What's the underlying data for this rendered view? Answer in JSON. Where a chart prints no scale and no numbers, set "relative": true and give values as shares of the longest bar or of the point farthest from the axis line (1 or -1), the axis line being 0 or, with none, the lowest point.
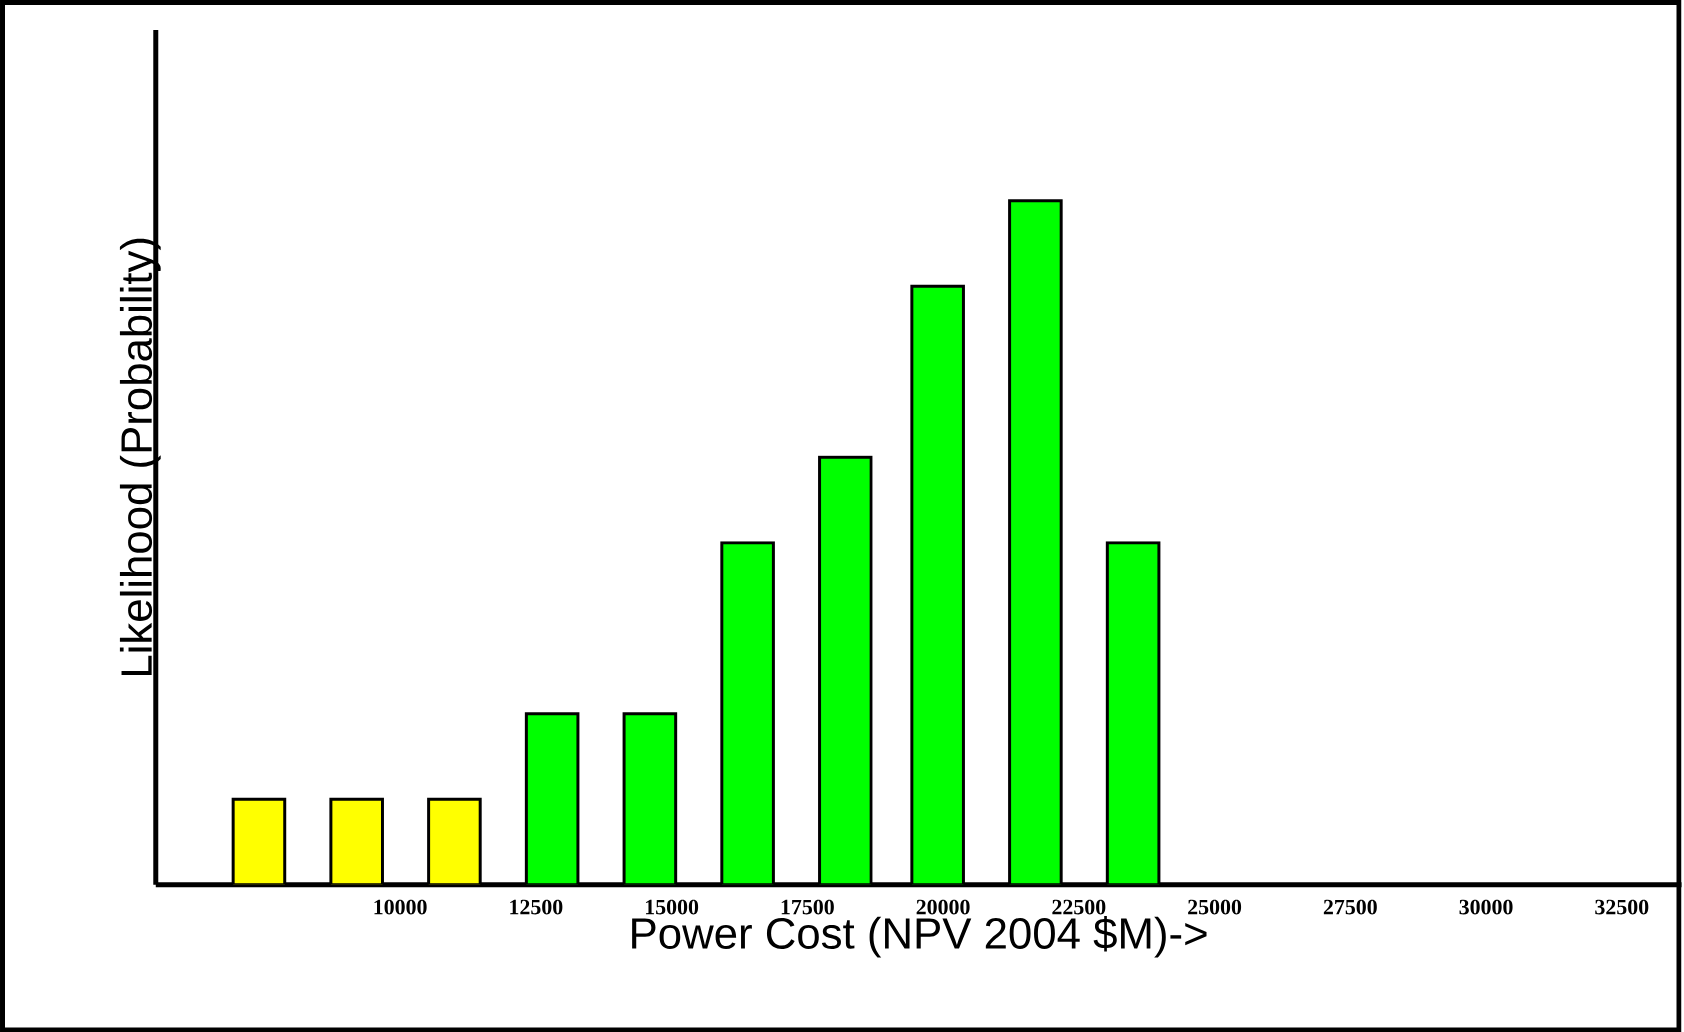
{
  "chart_data": {
    "type": "bar",
    "relative": true,
    "x": [
      7400,
      9200,
      11000,
      12800,
      14600,
      16400,
      18200,
      19900,
      21700,
      23500
    ],
    "values": [
      0.125,
      0.125,
      0.125,
      0.25,
      0.25,
      0.5,
      0.625,
      0.875,
      1,
      0.5
    ],
    "colors": [
      "#ffff00",
      "#ffff00",
      "#ffff00",
      "#00ff00",
      "#00ff00",
      "#00ff00",
      "#00ff00",
      "#00ff00",
      "#00ff00",
      "#00ff00"
    ],
    "xlim": [
      5500,
      33600
    ],
    "xticks": [
      10000,
      12500,
      15000,
      17500,
      20000,
      22500,
      25000,
      27500,
      30000,
      32500
    ],
    "xlabel": "Power Cost (NPV 2004 $M)->",
    "ylabel": "Likelihood (Probability)",
    "grid": false
  }
}
